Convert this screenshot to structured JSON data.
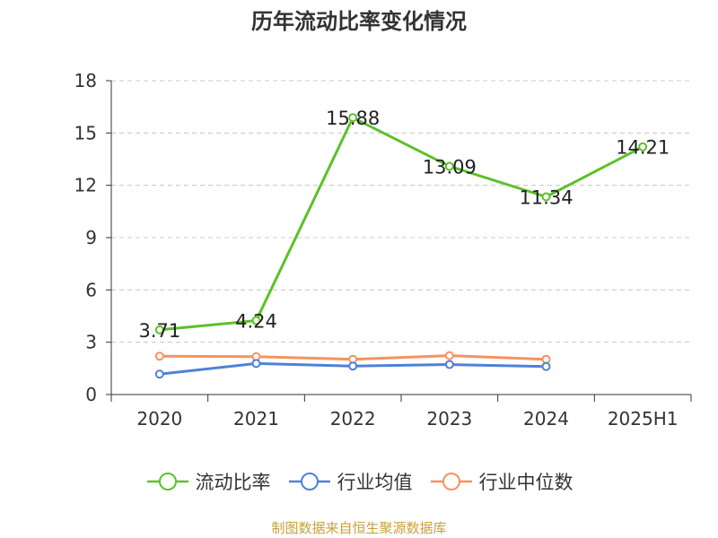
{
  "chart_data": {
    "type": "line",
    "title": "历年流动比率变化情况",
    "categories": [
      "2020",
      "2021",
      "2022",
      "2023",
      "2024",
      "2025H1"
    ],
    "ylim": [
      0,
      18
    ],
    "yticks": [
      0,
      3,
      6,
      9,
      12,
      15,
      18
    ],
    "grid": true,
    "legend_position": "bottom",
    "series": [
      {
        "name": "流动比率",
        "color": "#5cc12a",
        "values": [
          3.71,
          4.24,
          15.88,
          13.09,
          11.34,
          14.21
        ],
        "labels": [
          "3.71",
          "4.24",
          "15.88",
          "13.09",
          "11.34",
          "14.21"
        ]
      },
      {
        "name": "行业均值",
        "color": "#4f81d8",
        "values": [
          1.17,
          1.78,
          1.63,
          1.72,
          1.61,
          null
        ]
      },
      {
        "name": "行业中位数",
        "color": "#f7925e",
        "values": [
          2.2,
          2.17,
          2.02,
          2.23,
          2.02,
          null
        ]
      }
    ]
  },
  "source_text": "制图数据来自恒生聚源数据库",
  "source_color": "#c8a03c"
}
